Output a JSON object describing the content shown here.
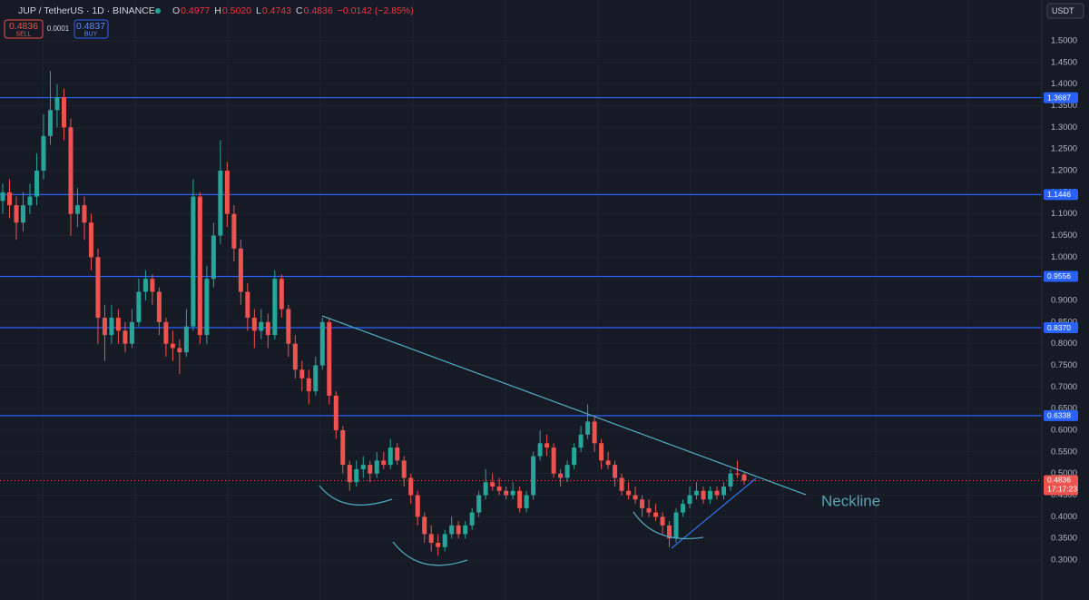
{
  "header": {
    "symbol": "JUP / TetherUS · 1D · BINANCE",
    "ohlc": [
      {
        "label": "O",
        "value": "0.4977"
      },
      {
        "label": "H",
        "value": "0.5020"
      },
      {
        "label": "L",
        "value": "0.4743"
      },
      {
        "label": "C",
        "value": "0.4836"
      }
    ],
    "change": "−0.0142 (−2.85%)"
  },
  "trade": {
    "sell_price": "0.4836",
    "sell_label": "SELL",
    "spread": "0.0001",
    "buy_price": "0.4837",
    "buy_label": "BUY"
  },
  "currency": "USDT",
  "chart_data": {
    "type": "candlestick",
    "up_color": "#26a69a",
    "down_color": "#ef5350",
    "grid": true,
    "ylim": [
      0.2077,
      1.5944
    ],
    "yticks": [
      {
        "value": 0.3,
        "label": "0.3000"
      },
      {
        "value": 0.35,
        "label": "0.3500"
      },
      {
        "value": 0.4,
        "label": "0.4000"
      },
      {
        "value": 0.45,
        "label": "0.4500"
      },
      {
        "value": 0.5,
        "label": "0.5000"
      },
      {
        "value": 0.55,
        "label": "0.5500"
      },
      {
        "value": 0.6,
        "label": "0.6000"
      },
      {
        "value": 0.65,
        "label": "0.6500"
      },
      {
        "value": 0.7,
        "label": "0.7000"
      },
      {
        "value": 0.75,
        "label": "0.7500"
      },
      {
        "value": 0.8,
        "label": "0.8000"
      },
      {
        "value": 0.85,
        "label": "0.8500"
      },
      {
        "value": 0.9,
        "label": "0.9000"
      },
      {
        "value": 0.95,
        "label": "0.9500"
      },
      {
        "value": 1.0,
        "label": "1.0000"
      },
      {
        "value": 1.05,
        "label": "1.0500"
      },
      {
        "value": 1.1,
        "label": "1.1000"
      },
      {
        "value": 1.15,
        "label": "1.1500"
      },
      {
        "value": 1.2,
        "label": "1.2000"
      },
      {
        "value": 1.25,
        "label": "1.2500"
      },
      {
        "value": 1.3,
        "label": "1.3000"
      },
      {
        "value": 1.35,
        "label": "1.3500"
      },
      {
        "value": 1.4,
        "label": "1.4000"
      },
      {
        "value": 1.45,
        "label": "1.4500"
      },
      {
        "value": 1.5,
        "label": "1.5000"
      }
    ],
    "levels": [
      {
        "value": 1.3687,
        "label": "1.3687"
      },
      {
        "value": 1.1446,
        "label": "1.1446"
      },
      {
        "value": 0.9556,
        "label": "0.9556"
      },
      {
        "value": 0.837,
        "label": "0.8370"
      },
      {
        "value": 0.6338,
        "label": "0.6338"
      }
    ],
    "level_color": "#2962ff",
    "last_price": 0.4836,
    "countdown": "17:17:23",
    "annotation": "Neckline",
    "ohlc": [
      [
        1.13,
        1.17,
        1.1,
        1.15
      ],
      [
        1.15,
        1.18,
        1.09,
        1.12
      ],
      [
        1.12,
        1.14,
        1.04,
        1.08
      ],
      [
        1.08,
        1.15,
        1.06,
        1.12
      ],
      [
        1.12,
        1.17,
        1.1,
        1.14
      ],
      [
        1.14,
        1.24,
        1.12,
        1.2
      ],
      [
        1.2,
        1.33,
        1.18,
        1.28
      ],
      [
        1.28,
        1.43,
        1.26,
        1.34
      ],
      [
        1.34,
        1.4,
        1.3,
        1.37
      ],
      [
        1.37,
        1.39,
        1.27,
        1.3
      ],
      [
        1.3,
        1.32,
        1.05,
        1.1
      ],
      [
        1.1,
        1.16,
        1.07,
        1.12
      ],
      [
        1.12,
        1.14,
        1.04,
        1.08
      ],
      [
        1.08,
        1.1,
        0.97,
        1.0
      ],
      [
        1.0,
        1.02,
        0.8,
        0.86
      ],
      [
        0.86,
        0.89,
        0.76,
        0.82
      ],
      [
        0.82,
        0.89,
        0.8,
        0.86
      ],
      [
        0.86,
        0.88,
        0.8,
        0.83
      ],
      [
        0.83,
        0.85,
        0.78,
        0.8
      ],
      [
        0.8,
        0.88,
        0.79,
        0.85
      ],
      [
        0.85,
        0.95,
        0.84,
        0.92
      ],
      [
        0.92,
        0.97,
        0.9,
        0.95
      ],
      [
        0.95,
        0.96,
        0.89,
        0.92
      ],
      [
        0.92,
        0.93,
        0.82,
        0.85
      ],
      [
        0.85,
        0.86,
        0.77,
        0.8
      ],
      [
        0.8,
        0.83,
        0.76,
        0.79
      ],
      [
        0.79,
        0.81,
        0.73,
        0.78
      ],
      [
        0.78,
        0.88,
        0.77,
        0.84
      ],
      [
        0.84,
        1.18,
        0.83,
        1.14
      ],
      [
        1.14,
        1.15,
        0.8,
        0.82
      ],
      [
        0.82,
        0.98,
        0.8,
        0.95
      ],
      [
        0.95,
        1.08,
        0.93,
        1.05
      ],
      [
        1.05,
        1.27,
        1.03,
        1.2
      ],
      [
        1.2,
        1.22,
        1.07,
        1.1
      ],
      [
        1.1,
        1.12,
        0.99,
        1.02
      ],
      [
        1.02,
        1.04,
        0.89,
        0.92
      ],
      [
        0.92,
        0.94,
        0.83,
        0.86
      ],
      [
        0.86,
        0.88,
        0.79,
        0.83
      ],
      [
        0.83,
        0.88,
        0.81,
        0.85
      ],
      [
        0.85,
        0.87,
        0.79,
        0.82
      ],
      [
        0.82,
        0.97,
        0.81,
        0.95
      ],
      [
        0.95,
        0.96,
        0.86,
        0.88
      ],
      [
        0.88,
        0.89,
        0.77,
        0.8
      ],
      [
        0.8,
        0.82,
        0.72,
        0.74
      ],
      [
        0.74,
        0.76,
        0.69,
        0.72
      ],
      [
        0.72,
        0.74,
        0.66,
        0.69
      ],
      [
        0.69,
        0.77,
        0.68,
        0.75
      ],
      [
        0.75,
        0.86,
        0.74,
        0.85
      ],
      [
        0.85,
        0.86,
        0.66,
        0.68
      ],
      [
        0.68,
        0.69,
        0.58,
        0.6
      ],
      [
        0.6,
        0.61,
        0.5,
        0.52
      ],
      [
        0.52,
        0.53,
        0.46,
        0.48
      ],
      [
        0.48,
        0.53,
        0.47,
        0.51
      ],
      [
        0.51,
        0.54,
        0.49,
        0.52
      ],
      [
        0.52,
        0.53,
        0.48,
        0.5
      ],
      [
        0.5,
        0.55,
        0.49,
        0.53
      ],
      [
        0.53,
        0.55,
        0.51,
        0.52
      ],
      [
        0.52,
        0.58,
        0.51,
        0.56
      ],
      [
        0.56,
        0.57,
        0.52,
        0.53
      ],
      [
        0.53,
        0.54,
        0.47,
        0.49
      ],
      [
        0.49,
        0.5,
        0.43,
        0.45
      ],
      [
        0.45,
        0.46,
        0.38,
        0.4
      ],
      [
        0.4,
        0.41,
        0.34,
        0.36
      ],
      [
        0.36,
        0.38,
        0.32,
        0.34
      ],
      [
        0.34,
        0.36,
        0.31,
        0.33
      ],
      [
        0.33,
        0.37,
        0.32,
        0.36
      ],
      [
        0.36,
        0.4,
        0.35,
        0.38
      ],
      [
        0.38,
        0.39,
        0.35,
        0.36
      ],
      [
        0.36,
        0.39,
        0.35,
        0.38
      ],
      [
        0.38,
        0.42,
        0.37,
        0.41
      ],
      [
        0.41,
        0.46,
        0.4,
        0.45
      ],
      [
        0.45,
        0.51,
        0.44,
        0.48
      ],
      [
        0.48,
        0.5,
        0.46,
        0.47
      ],
      [
        0.47,
        0.49,
        0.45,
        0.46
      ],
      [
        0.46,
        0.47,
        0.44,
        0.45
      ],
      [
        0.45,
        0.48,
        0.44,
        0.46
      ],
      [
        0.46,
        0.47,
        0.41,
        0.42
      ],
      [
        0.42,
        0.46,
        0.41,
        0.45
      ],
      [
        0.45,
        0.55,
        0.44,
        0.54
      ],
      [
        0.54,
        0.6,
        0.53,
        0.57
      ],
      [
        0.57,
        0.59,
        0.54,
        0.56
      ],
      [
        0.56,
        0.57,
        0.49,
        0.5
      ],
      [
        0.5,
        0.51,
        0.47,
        0.49
      ],
      [
        0.49,
        0.53,
        0.48,
        0.52
      ],
      [
        0.52,
        0.57,
        0.51,
        0.56
      ],
      [
        0.56,
        0.61,
        0.55,
        0.59
      ],
      [
        0.59,
        0.66,
        0.58,
        0.62
      ],
      [
        0.62,
        0.63,
        0.55,
        0.57
      ],
      [
        0.57,
        0.58,
        0.51,
        0.53
      ],
      [
        0.53,
        0.55,
        0.51,
        0.52
      ],
      [
        0.52,
        0.53,
        0.47,
        0.49
      ],
      [
        0.49,
        0.5,
        0.45,
        0.46
      ],
      [
        0.46,
        0.48,
        0.44,
        0.45
      ],
      [
        0.45,
        0.47,
        0.43,
        0.44
      ],
      [
        0.44,
        0.45,
        0.4,
        0.42
      ],
      [
        0.42,
        0.44,
        0.4,
        0.41
      ],
      [
        0.41,
        0.43,
        0.39,
        0.4
      ],
      [
        0.4,
        0.41,
        0.36,
        0.38
      ],
      [
        0.38,
        0.39,
        0.33,
        0.35
      ],
      [
        0.35,
        0.42,
        0.34,
        0.41
      ],
      [
        0.41,
        0.44,
        0.4,
        0.43
      ],
      [
        0.43,
        0.47,
        0.42,
        0.45
      ],
      [
        0.45,
        0.48,
        0.44,
        0.46
      ],
      [
        0.46,
        0.47,
        0.43,
        0.44
      ],
      [
        0.44,
        0.47,
        0.43,
        0.46
      ],
      [
        0.46,
        0.47,
        0.44,
        0.45
      ],
      [
        0.45,
        0.48,
        0.44,
        0.47
      ],
      [
        0.47,
        0.51,
        0.46,
        0.5
      ],
      [
        0.5,
        0.53,
        0.49,
        0.4977
      ],
      [
        0.4977,
        0.502,
        0.4743,
        0.4836
      ]
    ]
  }
}
